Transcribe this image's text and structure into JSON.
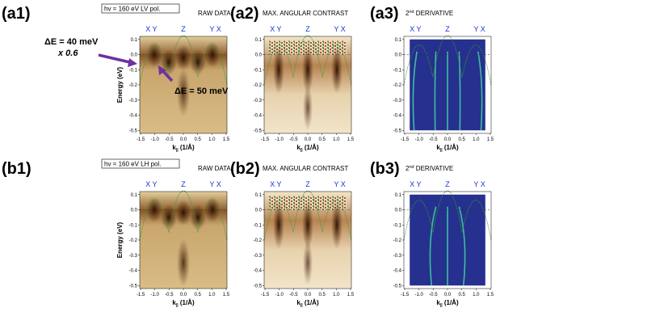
{
  "panels": [
    {
      "label": "(a1)",
      "info": "hv = 160 eV    LV pol.",
      "title": "RAW DATA"
    },
    {
      "label": "(a2)",
      "title": "MAX. ANGULAR CONTRAST"
    },
    {
      "label": "(a3)",
      "title_main": "2",
      "title_sup": "nd",
      "title_rest": " DERIVATIVE"
    },
    {
      "label": "(b1)",
      "info": "hv = 160 eV    LH pol.",
      "title": "RAW DATA"
    },
    {
      "label": "(b2)",
      "title": "MAX. ANGULAR CONTRAST"
    },
    {
      "label": "(b3)",
      "title_main": "2",
      "title_sup": "nd",
      "title_rest": " DERIVATIVE"
    }
  ],
  "axes": {
    "xticks": [
      "-1.5",
      "-1.0",
      "-0.5",
      "0.0",
      "0.5",
      "1.0",
      "1.5"
    ],
    "yticks": [
      "0.1",
      "0.0",
      "-0.1",
      "-0.2",
      "-0.3",
      "-0.4",
      "-0.5"
    ],
    "xlabel_k": "k",
    "xlabel_sub": "||",
    "xlabel_unit": " (1/Å)",
    "ylabel": "Energy (eV)",
    "symmetry": [
      "X Y",
      "Z",
      "Y X"
    ]
  },
  "annotations": {
    "de40": "ΔE = 40 meV",
    "scale": "x 0.6",
    "de50": "ΔE = 50 meV"
  }
}
